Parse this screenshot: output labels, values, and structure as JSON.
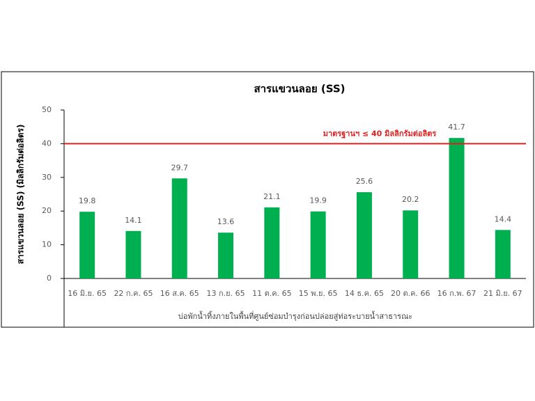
{
  "chart_data": {
    "type": "bar",
    "title": "สารแขวนลอย (SS)",
    "y_label": "สารแขวนลอย (SS) (มิลลิกรัมต่อลิตร)",
    "x_group_label": "บ่อพักน้ำทิ้งภายในพื้นที่ศูนย์ซ่อมบำรุงก่อนปล่อยสู่ท่อระบายน้ำสาธารณะ",
    "categories": [
      "16 มิ.ย. 65",
      "22 ก.ค. 65",
      "16 ส.ค. 65",
      "13 ก.ย. 65",
      "11 ต.ค. 65",
      "15 พ.ย. 65",
      "14 ธ.ค. 65",
      "20 ต.ค. 66",
      "16 ก.พ. 67",
      "21 มิ.ย. 67"
    ],
    "values": [
      19.8,
      14.1,
      29.7,
      13.6,
      21.1,
      19.9,
      25.6,
      20.2,
      41.7,
      14.4
    ],
    "color": "#00b050",
    "ylim": [
      0,
      50
    ],
    "yticks": [
      0,
      10,
      20,
      30,
      40,
      50
    ],
    "reference_line": {
      "value": 40,
      "label": "มาตรฐานฯ ≤ 40 มิลลิกรัมต่อลิตร",
      "color": "#e02020"
    }
  }
}
